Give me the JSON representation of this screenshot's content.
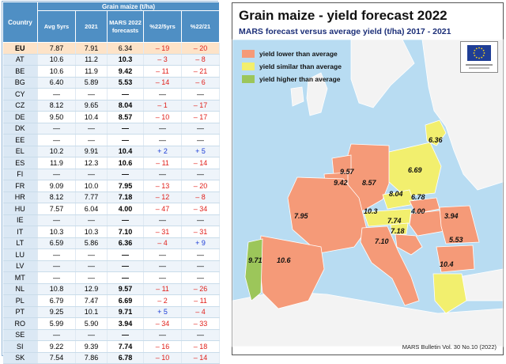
{
  "table": {
    "group_header": "Grain maize (t/ha)",
    "country_header": "Country",
    "columns": [
      "Avg 5yrs",
      "2021",
      "MARS 2022 forecasts",
      "%22/5yrs",
      "%22/21"
    ],
    "rows": [
      {
        "country": "EU",
        "avg": "7.87",
        "y2021": "7.91",
        "forecast": "6.34",
        "p5": "– 19",
        "p21": "– 20"
      },
      {
        "country": "AT",
        "avg": "10.6",
        "y2021": "11.2",
        "forecast": "10.3",
        "p5": "– 3",
        "p21": "– 8"
      },
      {
        "country": "BE",
        "avg": "10.6",
        "y2021": "11.9",
        "forecast": "9.42",
        "p5": "– 11",
        "p21": "– 21"
      },
      {
        "country": "BG",
        "avg": "6.40",
        "y2021": "5.89",
        "forecast": "5.53",
        "p5": "– 14",
        "p21": "– 6"
      },
      {
        "country": "CY",
        "avg": "—",
        "y2021": "—",
        "forecast": "—",
        "p5": "—",
        "p21": "—"
      },
      {
        "country": "CZ",
        "avg": "8.12",
        "y2021": "9.65",
        "forecast": "8.04",
        "p5": "– 1",
        "p21": "– 17"
      },
      {
        "country": "DE",
        "avg": "9.50",
        "y2021": "10.4",
        "forecast": "8.57",
        "p5": "– 10",
        "p21": "– 17"
      },
      {
        "country": "DK",
        "avg": "—",
        "y2021": "—",
        "forecast": "—",
        "p5": "—",
        "p21": "—"
      },
      {
        "country": "EE",
        "avg": "—",
        "y2021": "—",
        "forecast": "—",
        "p5": "—",
        "p21": "—"
      },
      {
        "country": "EL",
        "avg": "10.2",
        "y2021": "9.91",
        "forecast": "10.4",
        "p5": "+ 2",
        "p21": "+ 5"
      },
      {
        "country": "ES",
        "avg": "11.9",
        "y2021": "12.3",
        "forecast": "10.6",
        "p5": "– 11",
        "p21": "– 14"
      },
      {
        "country": "FI",
        "avg": "—",
        "y2021": "—",
        "forecast": "—",
        "p5": "—",
        "p21": "—"
      },
      {
        "country": "FR",
        "avg": "9.09",
        "y2021": "10.0",
        "forecast": "7.95",
        "p5": "– 13",
        "p21": "– 20"
      },
      {
        "country": "HR",
        "avg": "8.12",
        "y2021": "7.77",
        "forecast": "7.18",
        "p5": "– 12",
        "p21": "– 8"
      },
      {
        "country": "HU",
        "avg": "7.57",
        "y2021": "6.04",
        "forecast": "4.00",
        "p5": "– 47",
        "p21": "– 34"
      },
      {
        "country": "IE",
        "avg": "—",
        "y2021": "—",
        "forecast": "—",
        "p5": "—",
        "p21": "—"
      },
      {
        "country": "IT",
        "avg": "10.3",
        "y2021": "10.3",
        "forecast": "7.10",
        "p5": "– 31",
        "p21": "– 31"
      },
      {
        "country": "LT",
        "avg": "6.59",
        "y2021": "5.86",
        "forecast": "6.36",
        "p5": "– 4",
        "p21": "+ 9"
      },
      {
        "country": "LU",
        "avg": "—",
        "y2021": "—",
        "forecast": "—",
        "p5": "—",
        "p21": "—"
      },
      {
        "country": "LV",
        "avg": "—",
        "y2021": "—",
        "forecast": "—",
        "p5": "—",
        "p21": "—"
      },
      {
        "country": "MT",
        "avg": "—",
        "y2021": "—",
        "forecast": "—",
        "p5": "—",
        "p21": "—"
      },
      {
        "country": "NL",
        "avg": "10.8",
        "y2021": "12.9",
        "forecast": "9.57",
        "p5": "– 11",
        "p21": "– 26"
      },
      {
        "country": "PL",
        "avg": "6.79",
        "y2021": "7.47",
        "forecast": "6.69",
        "p5": "– 2",
        "p21": "– 11"
      },
      {
        "country": "PT",
        "avg": "9.25",
        "y2021": "10.1",
        "forecast": "9.71",
        "p5": "+ 5",
        "p21": "– 4"
      },
      {
        "country": "RO",
        "avg": "5.99",
        "y2021": "5.90",
        "forecast": "3.94",
        "p5": "– 34",
        "p21": "– 33"
      },
      {
        "country": "SE",
        "avg": "—",
        "y2021": "—",
        "forecast": "—",
        "p5": "—",
        "p21": "—"
      },
      {
        "country": "SI",
        "avg": "9.22",
        "y2021": "9.39",
        "forecast": "7.74",
        "p5": "– 16",
        "p21": "– 18"
      },
      {
        "country": "SK",
        "avg": "7.54",
        "y2021": "7.86",
        "forecast": "6.78",
        "p5": "– 10",
        "p21": "– 14"
      }
    ]
  },
  "map": {
    "title": "Grain maize - yield forecast 2022",
    "subtitle": "MARS forecast versus average yield (t/ha) 2017 - 2021",
    "legend": [
      {
        "label": "yield lower than average",
        "color": "#f59a78"
      },
      {
        "label": "yield similar than average",
        "color": "#f2ef6e"
      },
      {
        "label": "yield higher than average",
        "color": "#9cc65a"
      }
    ],
    "bulletin": "MARS Bulletin Vol. 30 No.10 (2022)",
    "values": [
      {
        "id": "lt",
        "text": "6.36"
      },
      {
        "id": "nl",
        "text": "9.57"
      },
      {
        "id": "be",
        "text": "9.42"
      },
      {
        "id": "de",
        "text": "8.57"
      },
      {
        "id": "pl",
        "text": "6.69"
      },
      {
        "id": "cz",
        "text": "8.04"
      },
      {
        "id": "sk",
        "text": "6.78"
      },
      {
        "id": "at",
        "text": "10.3"
      },
      {
        "id": "hu",
        "text": "4.00"
      },
      {
        "id": "si",
        "text": "7.74"
      },
      {
        "id": "hr",
        "text": "7.18"
      },
      {
        "id": "fr",
        "text": "7.95"
      },
      {
        "id": "ro",
        "text": "3.94"
      },
      {
        "id": "it",
        "text": "7.10"
      },
      {
        "id": "bg",
        "text": "5.53"
      },
      {
        "id": "pt",
        "text": "9.71"
      },
      {
        "id": "es",
        "text": "10.6"
      },
      {
        "id": "el",
        "text": "10.4"
      }
    ],
    "colors": {
      "sea": "#b8dcf2",
      "land": "#f3f3f3",
      "lower": "#f59a78",
      "similar": "#f2ef6e",
      "higher": "#9cc65a",
      "flag": "#1f3e96"
    }
  }
}
